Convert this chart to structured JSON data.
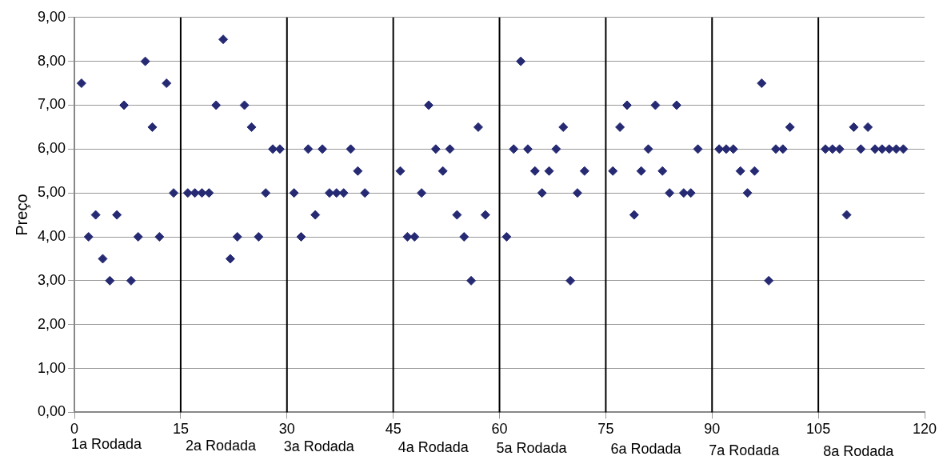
{
  "chart_data": {
    "type": "scatter",
    "ylabel": "Preço",
    "x": [
      1,
      2,
      3,
      4,
      5,
      6,
      7,
      8,
      9,
      10,
      11,
      12,
      13,
      14,
      16,
      17,
      18,
      19,
      20,
      21,
      22,
      23,
      24,
      25,
      26,
      27,
      28,
      29,
      31,
      32,
      33,
      34,
      35,
      36,
      37,
      38,
      39,
      40,
      41,
      46,
      47,
      48,
      49,
      50,
      51,
      52,
      53,
      54,
      55,
      56,
      57,
      58,
      61,
      62,
      63,
      64,
      65,
      66,
      67,
      68,
      69,
      70,
      71,
      72,
      76,
      77,
      78,
      79,
      80,
      81,
      82,
      83,
      84,
      85,
      86,
      87,
      88,
      91,
      92,
      93,
      94,
      95,
      96,
      97,
      98,
      99,
      100,
      101,
      106,
      107,
      108,
      109,
      110,
      111,
      112,
      113,
      114,
      115,
      116,
      117
    ],
    "values": [
      7.5,
      4,
      4.5,
      3.5,
      3,
      4.5,
      7,
      3,
      4,
      8,
      6.5,
      4,
      7.5,
      5,
      5,
      5,
      5,
      5,
      7,
      8.5,
      3.5,
      4,
      7,
      6.5,
      4,
      5,
      6,
      6,
      5,
      4,
      6,
      4.5,
      6,
      5,
      5,
      5,
      6,
      5.5,
      5,
      5.5,
      4,
      4,
      5,
      7,
      6,
      5.5,
      6,
      4.5,
      4,
      3,
      6.5,
      4.5,
      4,
      6,
      8,
      6,
      5.5,
      5,
      5.5,
      6,
      6.5,
      3,
      5,
      5.5,
      5.5,
      6.5,
      7,
      4.5,
      5.5,
      6,
      7,
      5.5,
      5,
      7,
      5,
      5,
      6,
      6,
      6,
      6,
      5.5,
      5,
      5.5,
      7.5,
      3,
      6,
      6,
      6.5,
      6,
      6,
      6,
      4.5,
      6.5,
      6,
      6.5,
      6,
      6,
      6,
      6,
      6
    ],
    "color": "#262a73",
    "marker": "diamond",
    "xlim": [
      0,
      120
    ],
    "xticks": [
      0,
      15,
      30,
      45,
      60,
      75,
      90,
      105,
      120
    ],
    "ylim": [
      0,
      9
    ],
    "yticks": [
      {
        "value": 0,
        "label": "0,00"
      },
      {
        "value": 1,
        "label": "1,00"
      },
      {
        "value": 2,
        "label": "2,00"
      },
      {
        "value": 3,
        "label": "3,00"
      },
      {
        "value": 4,
        "label": "4,00"
      },
      {
        "value": 5,
        "label": "5,00"
      },
      {
        "value": 6,
        "label": "6,00"
      },
      {
        "value": 7,
        "label": "7,00"
      },
      {
        "value": 8,
        "label": "8,00"
      },
      {
        "value": 9,
        "label": "9,00"
      }
    ],
    "grid": "y",
    "ref_lines": [
      {
        "axis": "x",
        "value": 15,
        "color": "#000000"
      },
      {
        "axis": "x",
        "value": 30,
        "color": "#000000"
      },
      {
        "axis": "x",
        "value": 45,
        "color": "#000000"
      },
      {
        "axis": "x",
        "value": 60,
        "color": "#000000"
      },
      {
        "axis": "x",
        "value": 75,
        "color": "#000000"
      },
      {
        "axis": "x",
        "value": 90,
        "color": "#000000"
      },
      {
        "axis": "x",
        "value": 105,
        "color": "#000000"
      }
    ],
    "annotations": [
      "1a Rodada",
      "2a Rodada",
      "3a Rodada",
      "4a Rodada",
      "5a Rodada",
      "6a Rodada",
      "7a Rodada",
      "8a Rodada"
    ],
    "legend": false
  }
}
